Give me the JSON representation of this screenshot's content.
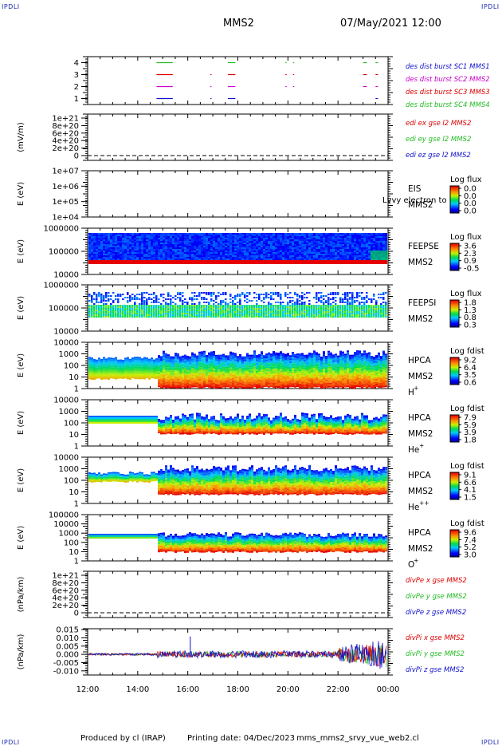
{
  "header": {
    "spacecraft": "MMS2",
    "datetime": "07/May/2021 12:00",
    "corner_label": "IPDLI"
  },
  "footer": {
    "produced_by": "Produced by cl (IRAP)",
    "printing_date": "Printing date: 04/Dec/2023",
    "filename": "mms_mms2_srvy_vue_web2.cl"
  },
  "colors": {
    "red": "#dd0000",
    "green": "#22bb22",
    "blue": "#1010cc",
    "magenta": "#cc00cc",
    "frame": "#000000"
  },
  "chart_data": [
    {
      "type": "line",
      "id": "burst",
      "ylim": [
        0.5,
        4.5
      ],
      "y_ticks": [
        "1",
        "2",
        "3",
        "4"
      ],
      "legend": [
        {
          "text": "des dist burst SC1 MMS1",
          "color": "#1010cc"
        },
        {
          "text": "des dist burst SC2 MMS2",
          "color": "#cc00cc"
        },
        {
          "text": "des dist burst SC3 MMS3",
          "color": "#dd0000"
        },
        {
          "text": "des dist burst SC4 MMS4",
          "color": "#22bb22"
        }
      ],
      "segments": [
        {
          "level": 4,
          "color": "#22bb22",
          "ranges": [
            [
              14.75,
              15.4
            ],
            [
              17.6,
              17.9
            ],
            [
              19.9,
              19.95
            ],
            [
              20.2,
              20.25
            ],
            [
              23.0,
              23.15
            ],
            [
              23.5,
              23.6
            ]
          ]
        },
        {
          "level": 3,
          "color": "#dd0000",
          "ranges": [
            [
              14.75,
              15.4
            ],
            [
              16.9,
              16.93
            ],
            [
              17.6,
              17.9
            ],
            [
              19.9,
              19.95
            ],
            [
              20.2,
              20.25
            ],
            [
              23.0,
              23.15
            ],
            [
              23.5,
              23.6
            ]
          ]
        },
        {
          "level": 2,
          "color": "#cc00cc",
          "ranges": [
            [
              14.75,
              15.4
            ],
            [
              16.9,
              16.93
            ],
            [
              17.6,
              17.9
            ],
            [
              19.9,
              19.95
            ],
            [
              20.2,
              20.25
            ],
            [
              23.0,
              23.15
            ],
            [
              23.5,
              23.6
            ]
          ]
        },
        {
          "level": 1,
          "color": "#1010cc",
          "ranges": [
            [
              14.75,
              15.4
            ],
            [
              16.9,
              16.93
            ],
            [
              17.6,
              17.9
            ],
            [
              23.5,
              23.6
            ]
          ]
        }
      ]
    },
    {
      "type": "line",
      "id": "edi",
      "ylabel": "(mV/m)",
      "y_ticks": [
        "1e+21",
        "8e+20",
        "6e+20",
        "4e+20",
        "2e+20",
        "0"
      ],
      "zero_line": true,
      "legend": [
        {
          "text": "edi ex gse l2 MMS2",
          "color": "#dd0000"
        },
        {
          "text": "edi ey gse l2 MMS2",
          "color": "#22bb22"
        },
        {
          "text": "edi ez gse l2 MMS2",
          "color": "#1010cc"
        }
      ]
    },
    {
      "type": "heatmap",
      "id": "eis",
      "ylabel": "E (eV)",
      "y_ticks": [
        "1e+07",
        "1e+06",
        "1e+05",
        "1e+04"
      ],
      "instrument": "EIS",
      "instrument_sub": "MMS2",
      "overlay_text": "Lvvy electron to",
      "colorbar_title": "Log flux",
      "colorbar_ticks": [
        "0.0",
        "0.0",
        "0.0",
        "0.0"
      ]
    },
    {
      "type": "heatmap",
      "id": "feepse",
      "ylabel": "E (eV)",
      "y_ticks": [
        "1000000",
        "100000",
        "10000"
      ],
      "instrument": "FEEPSE",
      "instrument_sub": "MMS2",
      "colorbar_title": "Log flux",
      "colorbar_ticks": [
        "3.6",
        "2.3",
        "0.9",
        "-0.5"
      ]
    },
    {
      "type": "heatmap",
      "id": "feepsi",
      "ylabel": "E (eV)",
      "y_ticks": [
        "1000000",
        "100000",
        "10000"
      ],
      "instrument": "FEEPSI",
      "instrument_sub": "MMS2",
      "colorbar_title": "Log flux",
      "colorbar_ticks": [
        "1.8",
        "1.3",
        "0.8",
        "0.3"
      ]
    },
    {
      "type": "heatmap",
      "id": "hpca_h",
      "ylabel": "E (eV)",
      "y_ticks": [
        "10000",
        "1000",
        "100",
        "10",
        "1"
      ],
      "instrument": "HPCA",
      "instrument_sub": "MMS2",
      "species": "H",
      "charge": "+",
      "colorbar_title": "Log fdist",
      "colorbar_ticks": [
        "9.2",
        "6.4",
        "3.5",
        "0.6"
      ]
    },
    {
      "type": "heatmap",
      "id": "hpca_he",
      "ylabel": "E (eV)",
      "y_ticks": [
        "10000",
        "1000",
        "100",
        "10",
        "1"
      ],
      "instrument": "HPCA",
      "instrument_sub": "MMS2",
      "species": "He",
      "charge": "+",
      "colorbar_title": "Log fdist",
      "colorbar_ticks": [
        "7.9",
        "5.9",
        "3.9",
        "1.8"
      ]
    },
    {
      "type": "heatmap",
      "id": "hpca_he2",
      "ylabel": "E (eV)",
      "y_ticks": [
        "10000",
        "1000",
        "100",
        "10",
        "1"
      ],
      "instrument": "HPCA",
      "instrument_sub": "MMS2",
      "species": "He",
      "charge": "++",
      "colorbar_title": "Log fdist",
      "colorbar_ticks": [
        "9.1",
        "6.6",
        "4.1",
        "1.5"
      ]
    },
    {
      "type": "heatmap",
      "id": "hpca_o",
      "ylabel": "E (eV)",
      "y_ticks": [
        "100000",
        "10000",
        "1000",
        "100",
        "10",
        "1"
      ],
      "instrument": "HPCA",
      "instrument_sub": "MMS2",
      "species": "O",
      "charge": "+",
      "colorbar_title": "Log fdist",
      "colorbar_ticks": [
        "9.6",
        "7.4",
        "5.2",
        "3.0"
      ]
    },
    {
      "type": "line",
      "id": "divpe",
      "ylabel": "(nPa/km)",
      "y_ticks": [
        "1e+21",
        "8e+20",
        "6e+20",
        "4e+20",
        "2e+20",
        "0"
      ],
      "zero_line": true,
      "legend": [
        {
          "text": "divPe x gse MMS2",
          "color": "#dd0000"
        },
        {
          "text": "divPe y gse MMS2",
          "color": "#22bb22"
        },
        {
          "text": "divPe z gse MMS2",
          "color": "#1010cc"
        }
      ]
    },
    {
      "type": "line",
      "id": "divpi",
      "ylabel": "(nPa/km)",
      "ylim": [
        -0.0125,
        0.0155
      ],
      "y_ticks": [
        "0.015",
        "0.010",
        "0.005",
        "0.000",
        "-0.005",
        "-0.010"
      ],
      "legend": [
        {
          "text": "divPi x gse MMS2",
          "color": "#dd0000"
        },
        {
          "text": "divPi y gse MMS2",
          "color": "#22bb22"
        },
        {
          "text": "divPi z gse MMS2",
          "color": "#1010cc"
        }
      ],
      "x_ticks": [
        "12:00",
        "14:00",
        "16:00",
        "18:00",
        "20:00",
        "22:00",
        "00:00"
      ]
    }
  ]
}
